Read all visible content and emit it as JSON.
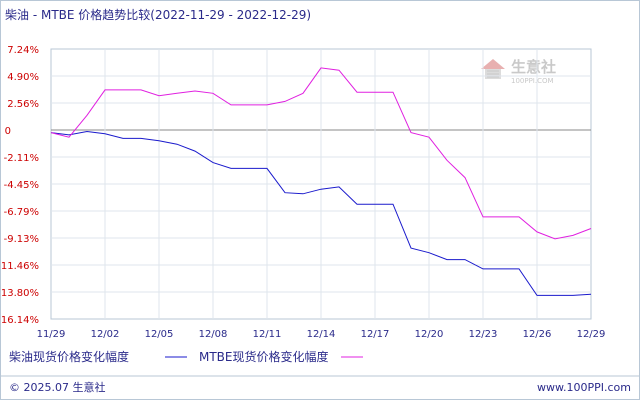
{
  "chart_data": {
    "type": "line",
    "title": "柴油 - MTBE 价格趋势比较(2022-11-29 - 2022-12-29)",
    "x_ticks": [
      "11/29",
      "12/02",
      "12/05",
      "12/08",
      "12/11",
      "12/14",
      "12/17",
      "12/20",
      "12/23",
      "12/26",
      "12/29"
    ],
    "y_ticks": [
      "7.24%",
      "4.90%",
      "2.56%",
      "0",
      "-2.11%",
      "-4.45%",
      "-6.79%",
      "-9.13%",
      "-11.46%",
      "-13.80%",
      "-16.14%"
    ],
    "ylim": [
      -16.14,
      7.24
    ],
    "grid": true,
    "legend_position": "bottom",
    "series": [
      {
        "name": "柴油现货价格变化幅度",
        "color": "#1a1acc",
        "x": [
          "11/29",
          "11/30",
          "12/01",
          "12/02",
          "12/03",
          "12/04",
          "12/05",
          "12/06",
          "12/07",
          "12/08",
          "12/09",
          "12/10",
          "12/11",
          "12/12",
          "12/13",
          "12/14",
          "12/15",
          "12/16",
          "12/17",
          "12/18",
          "12/19",
          "12/20",
          "12/21",
          "12/22",
          "12/23",
          "12/24",
          "12/25",
          "12/26",
          "12/27",
          "12/28",
          "12/29"
        ],
        "values": [
          0.0,
          -0.2,
          0.1,
          -0.1,
          -0.5,
          -0.5,
          -0.7,
          -1.0,
          -1.6,
          -2.6,
          -3.1,
          -3.1,
          -3.1,
          -5.2,
          -5.3,
          -4.9,
          -4.7,
          -6.2,
          -6.2,
          -6.2,
          -10.0,
          -10.4,
          -11.0,
          -11.0,
          -11.8,
          -11.8,
          -11.8,
          -14.1,
          -14.1,
          -14.1,
          -14.0
        ]
      },
      {
        "name": "MTBE现货价格变化幅度",
        "color": "#e020e0",
        "x": [
          "11/29",
          "11/30",
          "12/01",
          "12/02",
          "12/03",
          "12/04",
          "12/05",
          "12/06",
          "12/07",
          "12/08",
          "12/09",
          "12/10",
          "12/11",
          "12/12",
          "12/13",
          "12/14",
          "12/15",
          "12/16",
          "12/17",
          "12/18",
          "12/19",
          "12/20",
          "12/21",
          "12/22",
          "12/23",
          "12/24",
          "12/25",
          "12/26",
          "12/27",
          "12/28",
          "12/29"
        ],
        "values": [
          0.0,
          -0.4,
          1.5,
          3.7,
          3.7,
          3.7,
          3.2,
          3.4,
          3.6,
          3.4,
          2.4,
          2.4,
          2.4,
          2.7,
          3.4,
          5.6,
          5.4,
          3.5,
          3.5,
          3.5,
          0.0,
          -0.4,
          -2.4,
          -3.9,
          -7.3,
          -7.3,
          -7.3,
          -8.6,
          -9.2,
          -8.9,
          -8.3
        ]
      }
    ]
  },
  "watermark": {
    "text": "生意社",
    "url": "100PPI.COM"
  },
  "footer": {
    "left": "© 2025.07 生意社",
    "right": "www.100PPI.com"
  }
}
